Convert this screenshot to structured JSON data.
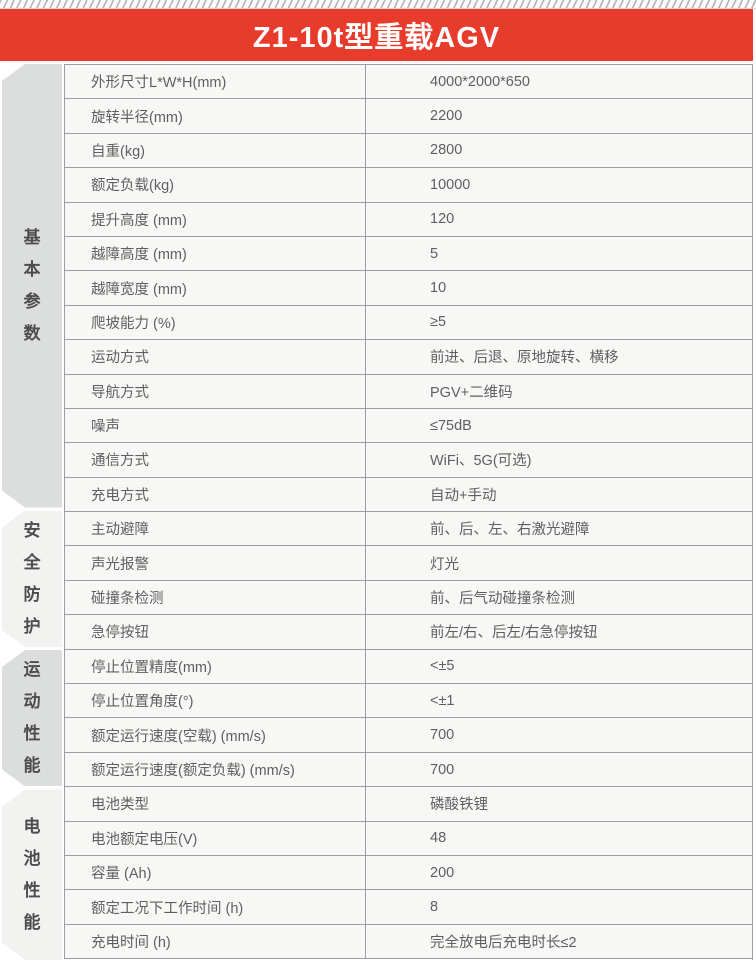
{
  "page": {
    "title": "Z1-10t型重载AGV"
  },
  "colors": {
    "banner_bg": "#e73b2c",
    "banner_text": "#ffffff",
    "table_border": "#9e9e9e",
    "row_bg": "#f7f7f5",
    "sidebar_dark": "#dcdddd",
    "sidebar_light": "#f2f2f1",
    "text": "#5f5f5f"
  },
  "sections": [
    {
      "label": "基本参数",
      "rows": [
        {
          "name": "外形尺寸L*W*H(mm)",
          "value": "4000*2000*650"
        },
        {
          "name": "旋转半径(mm)",
          "value": "2200"
        },
        {
          "name": "自重(kg)",
          "value": "2800"
        },
        {
          "name": "额定负载(kg)",
          "value": "10000"
        },
        {
          "name": "提升高度 (mm)",
          "value": "120"
        },
        {
          "name": "越障高度 (mm)",
          "value": "5"
        },
        {
          "name": "越障宽度 (mm)",
          "value": "10"
        },
        {
          "name": "爬坡能力 (%)",
          "value": "≥5"
        },
        {
          "name": "运动方式",
          "value": "前进、后退、原地旋转、横移"
        },
        {
          "name": "导航方式",
          "value": "PGV+二维码"
        },
        {
          "name": "噪声",
          "value": "≤75dB"
        },
        {
          "name": "通信方式",
          "value": "WiFi、5G(可选)"
        },
        {
          "name": "充电方式",
          "value": "自动+手动"
        }
      ]
    },
    {
      "label": "安全防护",
      "rows": [
        {
          "name": "主动避障",
          "value": "前、后、左、右激光避障"
        },
        {
          "name": "声光报警",
          "value": "灯光"
        },
        {
          "name": "碰撞条检测",
          "value": "前、后气动碰撞条检测"
        },
        {
          "name": "急停按钮",
          "value": "前左/右、后左/右急停按钮"
        }
      ]
    },
    {
      "label": "运动性能",
      "rows": [
        {
          "name": "停止位置精度(mm)",
          "value": "<±5"
        },
        {
          "name": "停止位置角度(°)",
          "value": "<±1"
        },
        {
          "name": "额定运行速度(空载) (mm/s)",
          "value": "700"
        },
        {
          "name": "额定运行速度(额定负载) (mm/s)",
          "value": "700"
        }
      ]
    },
    {
      "label": "电池性能",
      "rows": [
        {
          "name": "电池类型",
          "value": "磷酸铁锂"
        },
        {
          "name": "电池额定电压(V)",
          "value": "48"
        },
        {
          "name": "容量 (Ah)",
          "value": "200"
        },
        {
          "name": "额定工况下工作时间 (h)",
          "value": "8"
        },
        {
          "name": "充电时间 (h)",
          "value": "完全放电后充电时长≤2"
        }
      ]
    }
  ]
}
